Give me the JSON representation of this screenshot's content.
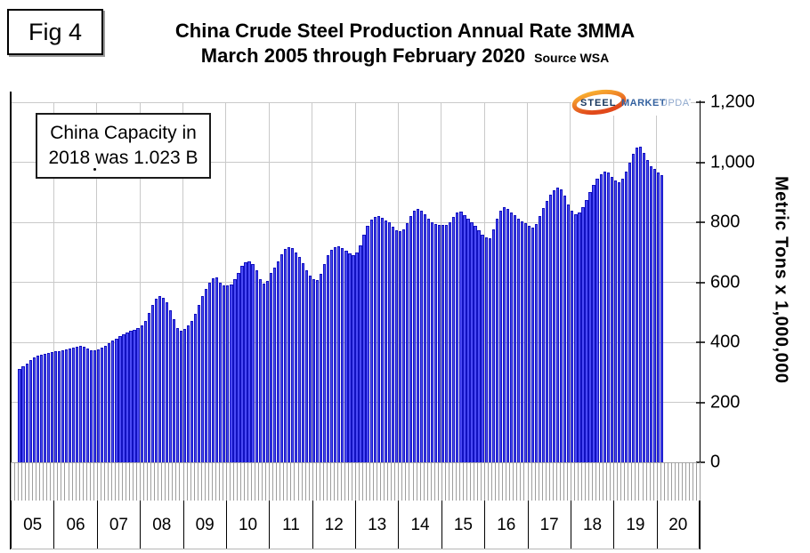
{
  "figure_label": "Fig 4",
  "header": {
    "title": "China Crude Steel Production Annual Rate 3MMA",
    "subtitle": "March 2005 through February 2020",
    "source": "Source WSA"
  },
  "annotation": {
    "line1": "China Capacity in",
    "line2": "2018 was 1.023 B"
  },
  "logo": {
    "word1": "STEEL",
    "word2": "MARKET",
    "word3": "UPDATE",
    "steel_color": "#17365d",
    "market_color": "#33619f",
    "update_color": "#8fa8cd",
    "swoosh_top_color": "#f9b031",
    "swoosh_bottom_color": "#e1491b"
  },
  "chart_data": {
    "type": "bar",
    "title": "China Crude Steel Production Annual Rate 3MMA",
    "subtitle": "March 2005 through February 2020",
    "source": "WSA",
    "xlabel": "",
    "ylabel": "Metric Tons x 1,000,000",
    "ylim": [
      0,
      1200
    ],
    "ytick_values": [
      0,
      200,
      400,
      600,
      800,
      1000,
      1200
    ],
    "ytick_labels": [
      "0",
      "200",
      "400",
      "600",
      "800",
      "1,000",
      "1,200"
    ],
    "x_year_labels": [
      "05",
      "06",
      "07",
      "08",
      "09",
      "10",
      "11",
      "12",
      "13",
      "14",
      "15",
      "16",
      "17",
      "18",
      "19",
      "20"
    ],
    "x_start": "March 2005",
    "x_end": "February 2020",
    "frequency": "monthly",
    "grid": true,
    "legend_position": "none",
    "bar_color": "#4a4af5",
    "bar_border_color": "#1111c0",
    "annotation_text": "China Capacity in 2018 was 1.023 B",
    "series": [
      {
        "name": "China crude steel production annual rate, 3-month moving average (million metric tons)",
        "start": "2005-03",
        "values": [
          311,
          321,
          330,
          340,
          349,
          355,
          359,
          361,
          364,
          367,
          369,
          371,
          374,
          377,
          380,
          383,
          385,
          387,
          385,
          379,
          374,
          372,
          375,
          381,
          389,
          397,
          405,
          413,
          420,
          427,
          433,
          438,
          442,
          446,
          455,
          470,
          498,
          525,
          545,
          553,
          548,
          532,
          508,
          478,
          448,
          440,
          444,
          455,
          472,
          495,
          525,
          553,
          578,
          600,
          614,
          616,
          599,
          590,
          590,
          593,
          610,
          632,
          655,
          668,
          671,
          660,
          640,
          610,
          597,
          604,
          630,
          648,
          670,
          692,
          710,
          718,
          714,
          700,
          685,
          665,
          640,
          622,
          610,
          606,
          628,
          660,
          690,
          708,
          718,
          720,
          713,
          705,
          696,
          690,
          700,
          724,
          758,
          788,
          808,
          818,
          820,
          814,
          807,
          800,
          784,
          773,
          770,
          776,
          797,
          820,
          838,
          845,
          839,
          827,
          813,
          801,
          793,
          790,
          792,
          790,
          800,
          818,
          832,
          835,
          825,
          812,
          800,
          788,
          772,
          758,
          750,
          748,
          775,
          812,
          840,
          850,
          843,
          834,
          824,
          812,
          802,
          796,
          788,
          781,
          795,
          820,
          848,
          872,
          893,
          908,
          915,
          909,
          888,
          860,
          838,
          828,
          832,
          850,
          874,
          900,
          925,
          946,
          960,
          970,
          966,
          952,
          940,
          933,
          944,
          968,
          998,
          1028,
          1048,
          1052,
          1030,
          1006,
          988,
          978,
          965,
          957
        ]
      }
    ]
  }
}
